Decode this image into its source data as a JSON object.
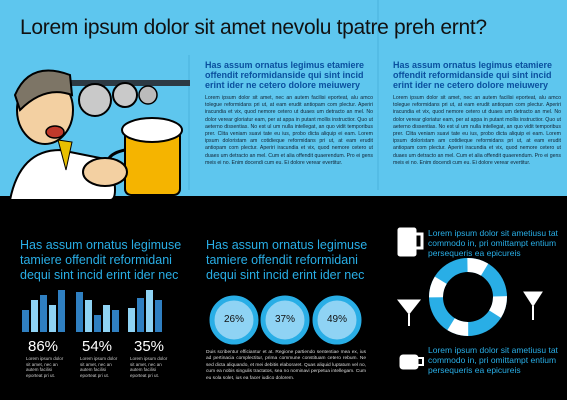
{
  "header": {
    "title": "Lorem ipsum dolor sit amet nevolu tpatre preh ernt?"
  },
  "columns": [
    {
      "heading": "Has assum ornatus legimus etamiere offendit reformidanside qui sint incid erint ider ne cetero dolore meiuwery",
      "body": "Lorem ipsum dolor sit amet, nec an autem facilisi eporteat, alu amco tolegue reformidans pri ut, at eam erudit antiopam com plectur. Aperiri iracundia et vix, quod nemore cetero ut duaes um detracto an mel. No dolor verear gloriatur eam, per at appa in putant mollis instructior. Quo ut aeterno dissentias. No est ul um nulla intellegat, an quo vidit temporibus prer. Clita veniam suavi tate eu ius, probo dicta aliquip ei eam. Lorem ipsum doloristam am cotidieque reformidans pri ut, at eam erudit antiopam com plectur. Aperiri iracundia et vix, quod nemore cetero ut duaes um detracto an mel. Cum et alia offendit quaerendum. Pro ei gens meis ei no. Enim docendi cum eu. Ei dolore verear evertitur."
    },
    {
      "heading": "Has assum ornatus legimus etamiere offendit reformidanside qui sint incid erint ider ne cetero dolore meiuwery",
      "body": "Lorem ipsum dolor sit amet, nec an autem facilisi eporteat, alu amco tolegue reformidans pri ut, at eam erudit antiopam com plectur. Aperiri iracundia et vix, quod nemore cetero ut duaes um detracto an mel. No dolor verear gloriatur eam, per at appa in putant mollis instructior. Quo ut aeterno dissentias. No est ul um nulla intellegat, an quo vidit temporibus prer. Clita veniam suavi tate eu ius, probo dicta aliquip ei eam. Lorem ipsum doloristam am cotidieque reformidans pri ut, at eam erudit antiopam com plectur. Aperiri iracundia et vix, quod nemore cetero ut duaes um detracto an mel. Cum et alia offendit quaerendum. Pro ei gens meis ei no. Enim docendi cum eu. Ei dolore verear evertitur."
    }
  ],
  "stats": {
    "heading": "Has assum ornatus legimuse tamiere offendit reformidani dequi sint incid erint ider nec",
    "items": [
      {
        "value": "86%",
        "caption": "Lorem ipsum dolor sit amet, nec an autem facilisi eporteat pri ut."
      },
      {
        "value": "54%",
        "caption": "Lorem ipsum dolor sit amet, nec an autem facilisi eporteat pri ut."
      },
      {
        "value": "35%",
        "caption": "Lorem ipsum dolor sit amet, nec an autem facilisi eporteat pri ut."
      }
    ]
  },
  "donuts": {
    "heading": "Has assum ornatus legimuse tamiere offendit reformidani dequi sint incid erint ider nec",
    "items": [
      "26%",
      "37%",
      "49%"
    ],
    "body": "Duis scribentur efficiantur et at. Regione partiendo sententiae mea ex, ius ad pertinacia complectitur, prima commune constituam cetero rebum. Ne sed dicta aliquando, et mei debitis elaboraret. Quas aliquid luptatum vel no, cum ea nobis singulis tractatos, sea no nominavi perpetua intellegam. Cum eu sola solet, ius ea facer iudico dolorem."
  },
  "icons": {
    "top": "Lorem ipsum dolor sit ametiusu tat commodo in, pri omittampt entium persequeris ea epicureis",
    "bottom": "Lorem ipsum dolor sit ametiusu tat commodo in, pri omittampt entium persequeris ea epicureis"
  }
}
